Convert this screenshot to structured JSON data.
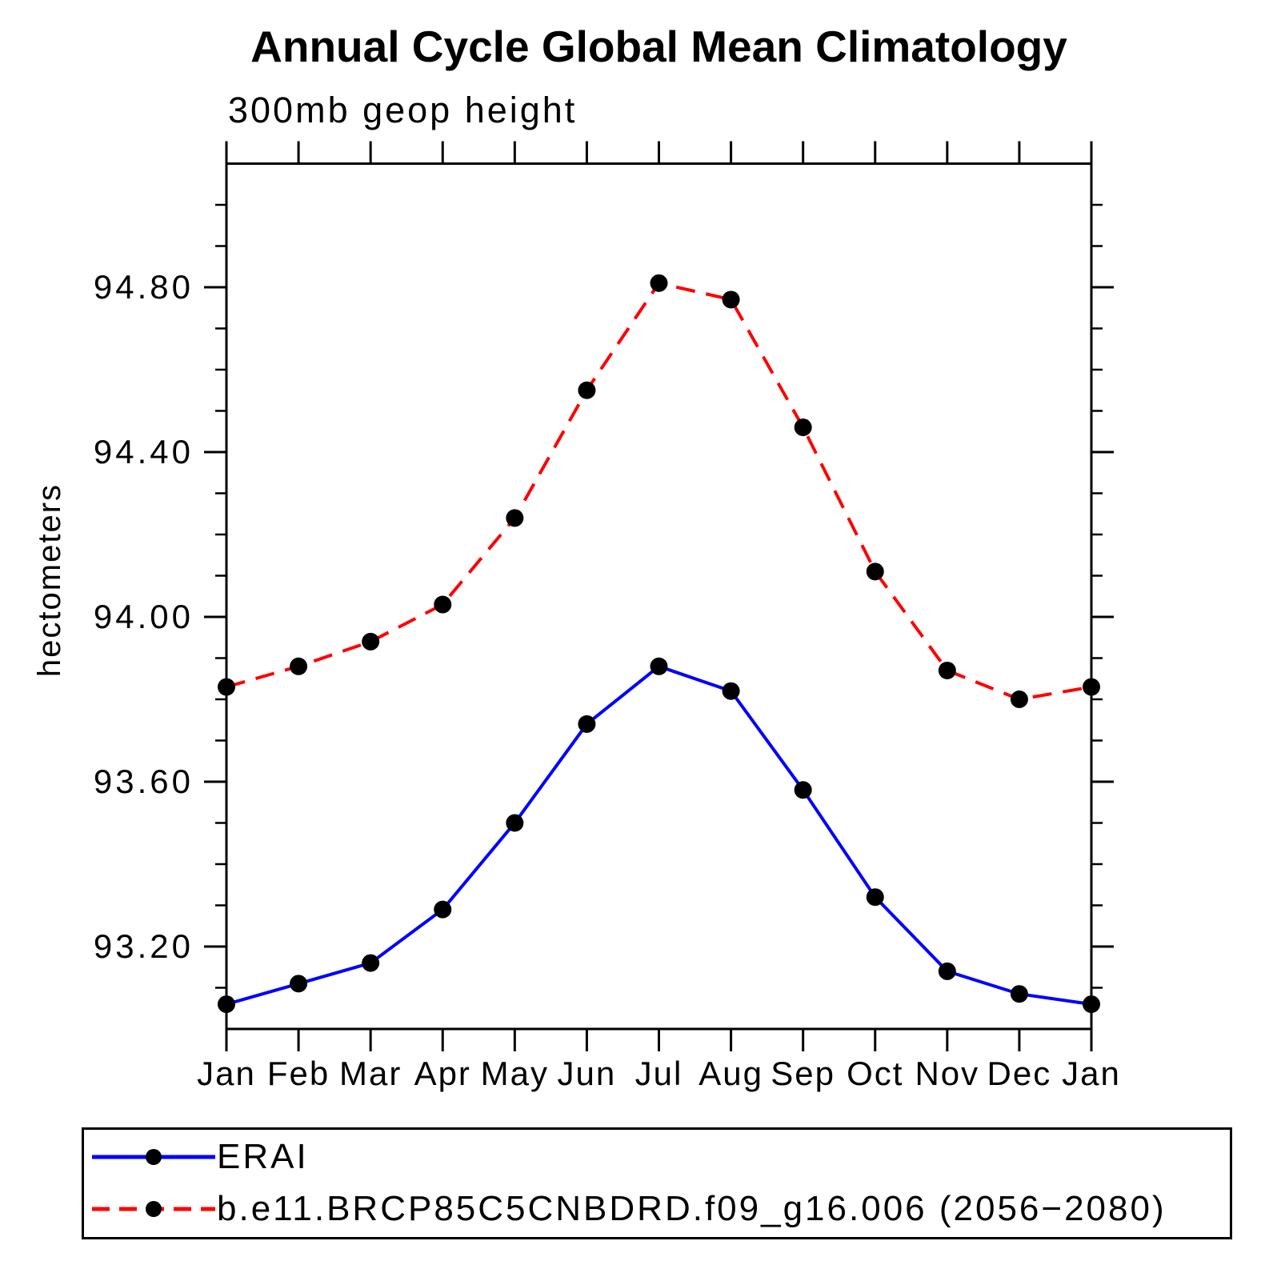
{
  "chart_data": {
    "type": "line",
    "title": "Annual Cycle Global Mean Climatology",
    "subtitle": "300mb geop height",
    "ylabel": "hectometers",
    "xlabel": "",
    "categories": [
      "Jan",
      "Feb",
      "Mar",
      "Apr",
      "May",
      "Jun",
      "Jul",
      "Aug",
      "Sep",
      "Oct",
      "Nov",
      "Dec",
      "Jan"
    ],
    "ylim": [
      93.0,
      95.1
    ],
    "y_major_ticks": [
      93.2,
      93.6,
      94.0,
      94.4,
      94.8
    ],
    "y_tick_labels": [
      "93.20",
      "93.60",
      "94.00",
      "94.40",
      "94.80"
    ],
    "y_minor_step": 0.1,
    "grid": false,
    "legend_position": "bottom-left",
    "axis_color": "#000000",
    "series": [
      {
        "name": "ERAI",
        "color": "#0000ff",
        "line_style": "solid",
        "marker": "circle",
        "marker_color": "#000000",
        "values": [
          93.06,
          93.11,
          93.16,
          93.29,
          93.5,
          93.74,
          93.88,
          93.82,
          93.58,
          93.32,
          93.14,
          93.085,
          93.06
        ]
      },
      {
        "name": "b.e11.BRCP85C5CNBDRD.f09_g16.006 (2056−2080)",
        "color": "#ff0000",
        "line_style": "dashed",
        "marker": "circle",
        "marker_color": "#000000",
        "values": [
          93.83,
          93.88,
          93.94,
          94.03,
          94.24,
          94.55,
          94.81,
          94.77,
          94.46,
          94.11,
          93.87,
          93.8,
          93.83
        ]
      }
    ]
  }
}
